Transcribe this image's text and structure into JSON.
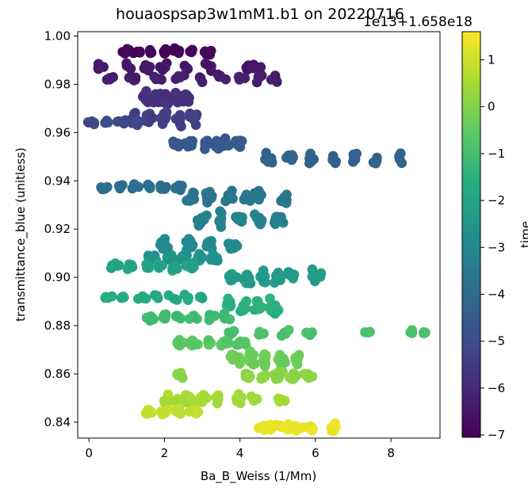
{
  "chart_data": {
    "type": "scatter",
    "title": "houaospsap3w1mM1.b1 on 20220716",
    "xlabel": "Ba_B_Weiss (1/Mm)",
    "ylabel": "transmittance_blue (unitless)",
    "xlim": [
      -0.3,
      9.3
    ],
    "ylim": [
      0.8334,
      1.0018
    ],
    "xticks": [
      "0",
      "2",
      "4",
      "6",
      "8"
    ],
    "xtick_values": [
      0,
      2,
      4,
      6,
      8
    ],
    "yticks": [
      "0.84",
      "0.86",
      "0.88",
      "0.90",
      "0.92",
      "0.94",
      "0.96",
      "0.98",
      "1.00"
    ],
    "ytick_values": [
      0.84,
      0.86,
      0.88,
      0.9,
      0.92,
      0.94,
      0.96,
      0.98,
      1.0
    ],
    "grid": false,
    "colormap": "viridis",
    "colorbar": {
      "label": "time",
      "offset_text": "1e13+1.658e18",
      "range": [
        -7.05,
        1.6
      ],
      "ticks": [
        "1",
        "0",
        "−1",
        "−2",
        "−3",
        "−4",
        "−5",
        "−6",
        "−7"
      ],
      "tick_values": [
        1,
        0,
        -1,
        -2,
        -3,
        -4,
        -5,
        -6,
        -7
      ]
    },
    "clusters": [
      {
        "t": -6.9,
        "y": 0.9935,
        "x": [
          1.0,
          1.3,
          1.6,
          2.0,
          2.3,
          2.7,
          3.1
        ],
        "spread": 0.002,
        "n": 35
      },
      {
        "t": -6.5,
        "y": 0.987,
        "x": [
          0.3,
          1.0,
          1.5,
          2.0,
          2.6,
          3.2,
          4.2,
          4.5
        ],
        "spread": 0.0025,
        "n": 35
      },
      {
        "t": -6.3,
        "y": 0.9825,
        "x": [
          0.6,
          1.2,
          1.8,
          2.4,
          3.0,
          3.5,
          4.0,
          4.5,
          5.0
        ],
        "spread": 0.002,
        "n": 40
      },
      {
        "t": -5.8,
        "y": 0.974,
        "x": [
          1.5,
          1.8,
          2.0,
          2.3,
          2.6
        ],
        "spread": 0.004,
        "n": 45
      },
      {
        "t": -5.4,
        "y": 0.966,
        "x": [
          1.2,
          1.6,
          2.0,
          2.4,
          2.8
        ],
        "spread": 0.004,
        "n": 45
      },
      {
        "t": -5.1,
        "y": 0.964,
        "x": [
          0.1,
          0.5,
          0.9,
          1.3
        ],
        "spread": 0.0015,
        "n": 20
      },
      {
        "t": -4.6,
        "y": 0.955,
        "x": [
          2.3,
          2.7,
          3.1,
          3.4,
          3.7,
          4.0
        ],
        "spread": 0.003,
        "n": 45
      },
      {
        "t": -4.3,
        "y": 0.949,
        "x": [
          4.7,
          5.3,
          5.9,
          6.5,
          7.0,
          7.6,
          8.2
        ],
        "spread": 0.0035,
        "n": 45
      },
      {
        "t": -3.9,
        "y": 0.9375,
        "x": [
          0.4,
          0.8,
          1.2,
          1.6,
          2.0,
          2.4
        ],
        "spread": 0.002,
        "n": 30
      },
      {
        "t": -3.6,
        "y": 0.933,
        "x": [
          2.7,
          3.2,
          3.7,
          4.2,
          4.5,
          5.2
        ],
        "spread": 0.004,
        "n": 50
      },
      {
        "t": -3.2,
        "y": 0.924,
        "x": [
          3.0,
          3.5,
          4.0,
          4.5,
          5.0
        ],
        "spread": 0.004,
        "n": 45
      },
      {
        "t": -2.9,
        "y": 0.914,
        "x": [
          2.0,
          2.6,
          3.2,
          3.8
        ],
        "spread": 0.003,
        "n": 45
      },
      {
        "t": -2.6,
        "y": 0.908,
        "x": [
          1.7,
          2.1,
          2.5,
          2.9,
          3.3
        ],
        "spread": 0.003,
        "n": 45
      },
      {
        "t": -2.3,
        "y": 0.9,
        "x": [
          3.8,
          4.2,
          4.6,
          5.0,
          5.4,
          6.0
        ],
        "spread": 0.0045,
        "n": 40
      },
      {
        "t": -2.0,
        "y": 0.9045,
        "x": [
          0.7,
          1.1,
          1.5,
          1.9,
          2.3,
          2.7
        ],
        "spread": 0.002,
        "n": 30
      },
      {
        "t": -1.7,
        "y": 0.892,
        "x": [
          0.5,
          0.9,
          1.4,
          1.8,
          2.2,
          2.6,
          3.0
        ],
        "spread": 0.002,
        "n": 25
      },
      {
        "t": -1.5,
        "y": 0.888,
        "x": [
          3.7,
          4.1,
          4.5,
          4.9
        ],
        "spread": 0.004,
        "n": 45
      },
      {
        "t": -1.1,
        "y": 0.8835,
        "x": [
          1.6,
          2.0,
          2.4,
          2.8,
          3.2,
          3.6
        ],
        "spread": 0.002,
        "n": 35
      },
      {
        "t": -0.9,
        "y": 0.877,
        "x": [
          3.8,
          4.5,
          5.2,
          5.8,
          7.4,
          8.6,
          8.9
        ],
        "spread": 0.002,
        "n": 25
      },
      {
        "t": -0.6,
        "y": 0.873,
        "x": [
          2.4,
          2.8,
          3.2,
          3.6,
          4.0
        ],
        "spread": 0.002,
        "n": 35
      },
      {
        "t": -0.3,
        "y": 0.866,
        "x": [
          3.9,
          4.3,
          4.7,
          5.1,
          5.5
        ],
        "spread": 0.004,
        "n": 45
      },
      {
        "t": 0.1,
        "y": 0.859,
        "x": [
          2.4,
          4.2,
          4.6,
          5.0,
          5.4,
          5.8
        ],
        "spread": 0.003,
        "n": 40
      },
      {
        "t": 0.5,
        "y": 0.849,
        "x": [
          2.1,
          2.4,
          2.7,
          3.0,
          3.4,
          3.9,
          4.4,
          5.1
        ],
        "spread": 0.003,
        "n": 45
      },
      {
        "t": 0.9,
        "y": 0.844,
        "x": [
          1.6,
          2.0,
          2.4,
          2.8
        ],
        "spread": 0.002,
        "n": 35
      },
      {
        "t": 1.35,
        "y": 0.838,
        "x": [
          4.6,
          4.9,
          5.2,
          5.5,
          5.8,
          6.5
        ],
        "spread": 0.0025,
        "n": 40
      }
    ]
  }
}
